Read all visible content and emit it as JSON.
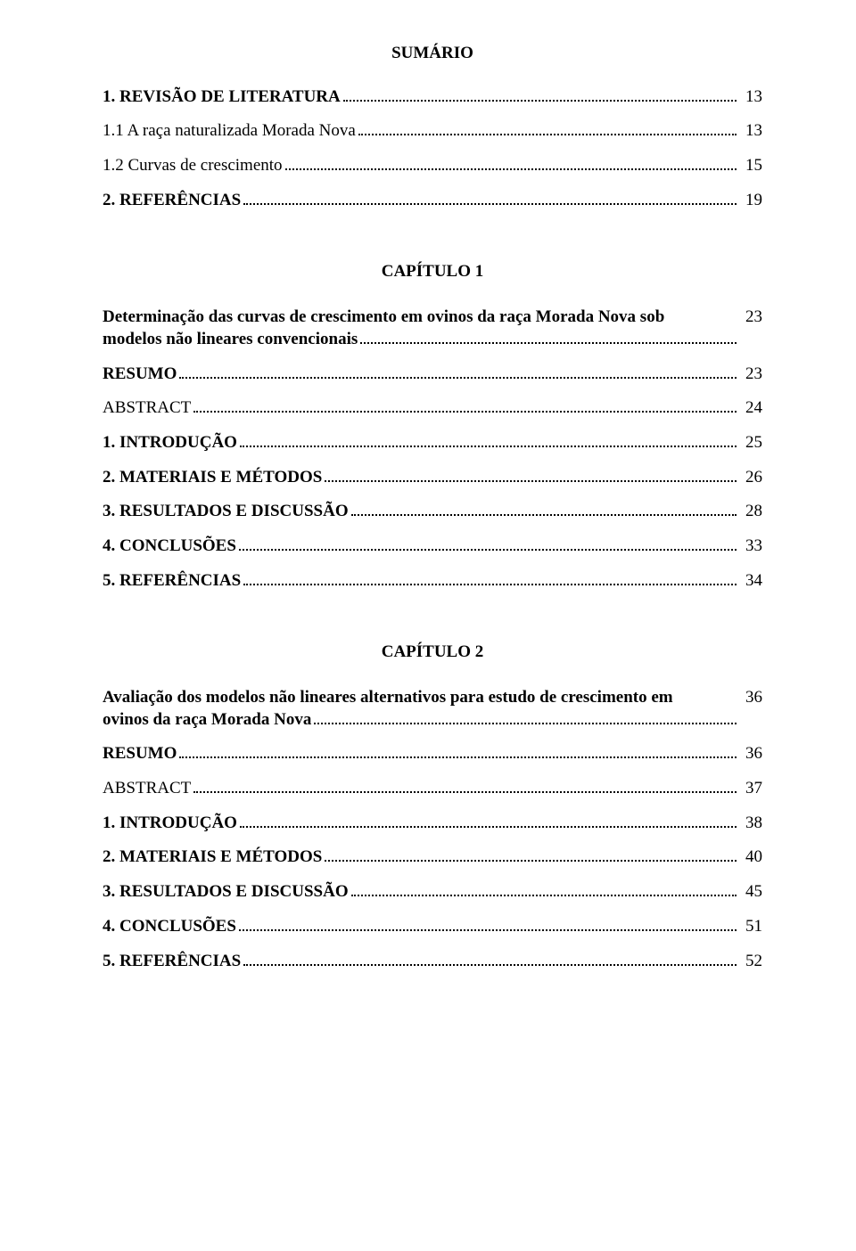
{
  "title": "SUMÁRIO",
  "section0": {
    "items": [
      {
        "label": "1. REVISÃO DE LITERATURA",
        "page": "13",
        "bold": true
      },
      {
        "label": "1.1 A raça naturalizada Morada Nova",
        "page": "13",
        "bold": false
      },
      {
        "label": "1.2 Curvas de crescimento",
        "page": "15",
        "bold": false
      },
      {
        "label": "2. REFERÊNCIAS",
        "page": "19",
        "bold": true
      }
    ]
  },
  "chapter1": {
    "heading": "CAPÍTULO 1",
    "intro": {
      "line1": "Determinação das curvas de crescimento em ovinos da raça Morada Nova sob",
      "line2": "modelos não lineares convencionais",
      "page": "23"
    },
    "items": [
      {
        "label": "RESUMO",
        "page": "23",
        "bold": true
      },
      {
        "label": "ABSTRACT",
        "page": "24",
        "bold": false
      },
      {
        "label": "1. INTRODUÇÃO",
        "page": "25",
        "bold": true
      },
      {
        "label": "2. MATERIAIS E MÉTODOS",
        "page": "26",
        "bold": true
      },
      {
        "label": "3. RESULTADOS E DISCUSSÃO",
        "page": "28",
        "bold": true
      },
      {
        "label": "4. CONCLUSÕES",
        "page": "33",
        "bold": true
      },
      {
        "label": "5. REFERÊNCIAS",
        "page": "34",
        "bold": true
      }
    ]
  },
  "chapter2": {
    "heading": "CAPÍTULO 2",
    "intro": {
      "line1": "Avaliação dos modelos não lineares alternativos para estudo de crescimento em",
      "line2": "ovinos da raça Morada Nova",
      "page": "36"
    },
    "items": [
      {
        "label": "RESUMO",
        "page": "36",
        "bold": true
      },
      {
        "label": "ABSTRACT",
        "page": "37",
        "bold": false
      },
      {
        "label": "1. INTRODUÇÃO",
        "page": "38",
        "bold": true
      },
      {
        "label": "2. MATERIAIS E MÉTODOS",
        "page": "40",
        "bold": true
      },
      {
        "label": "3. RESULTADOS E DISCUSSÃO",
        "page": "45",
        "bold": true
      },
      {
        "label": "4. CONCLUSÕES",
        "page": "51",
        "bold": true
      },
      {
        "label": "5. REFERÊNCIAS",
        "page": "52",
        "bold": true
      }
    ]
  }
}
